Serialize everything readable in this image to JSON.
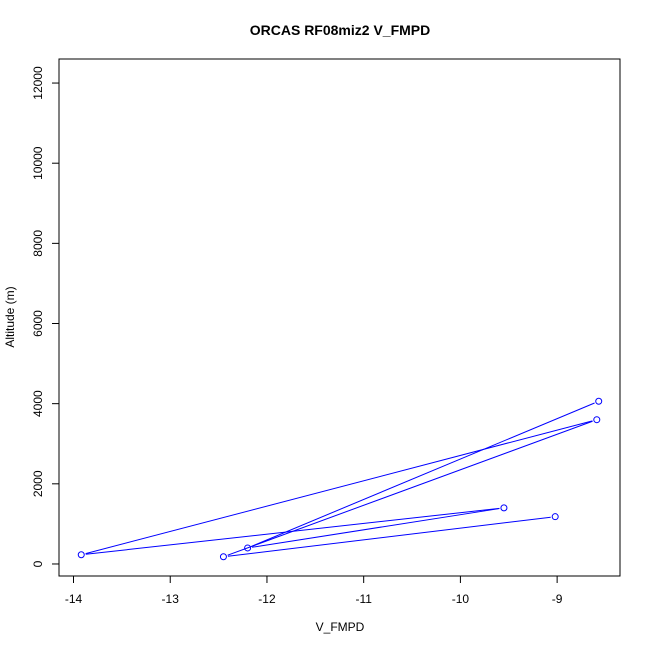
{
  "chart_data": {
    "type": "line",
    "title": "ORCAS RF08miz2 V_FMPD",
    "xlabel": "V_FMPD",
    "ylabel": "Altitude (m)",
    "xlim": [
      -14.15,
      -8.35
    ],
    "ylim": [
      -300,
      12600
    ],
    "x_ticks": [
      -14,
      -13,
      -12,
      -11,
      -10,
      -9
    ],
    "y_ticks": [
      0,
      2000,
      4000,
      6000,
      8000,
      10000,
      12000
    ],
    "grid": false,
    "legend": "none",
    "series": [
      {
        "line_color": "#0000ff",
        "marker": "open-circle",
        "x": [
          -8.57,
          -12.2,
          -9.55,
          -13.92,
          -8.59,
          -12.45,
          -9.02
        ],
        "y": [
          4060,
          400,
          1400,
          230,
          3600,
          180,
          1180
        ]
      }
    ]
  }
}
